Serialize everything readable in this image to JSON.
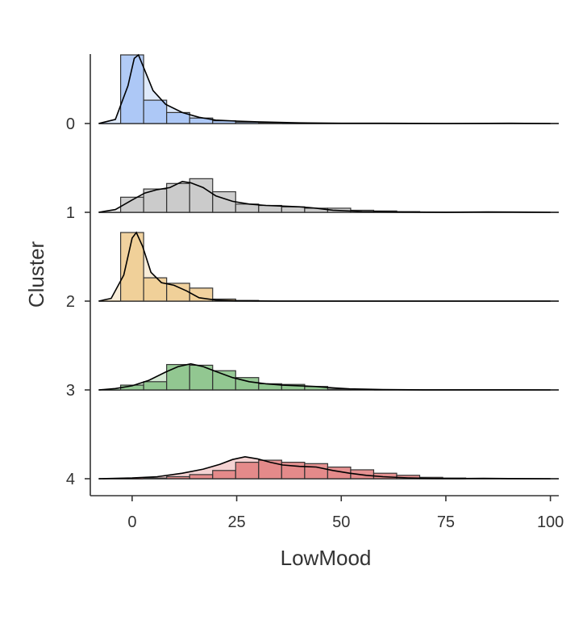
{
  "chart_data": {
    "type": "area",
    "subtype": "ridgeline-histogram-density",
    "title": "",
    "xlabel": "LowMood",
    "ylabel": "Cluster",
    "xlim": [
      -10,
      102
    ],
    "x_ticks": [
      0,
      25,
      50,
      75,
      100
    ],
    "x_tick_labels": [
      "0",
      "25",
      "50",
      "75",
      "100"
    ],
    "y_categories": [
      "0",
      "1",
      "2",
      "3",
      "4"
    ],
    "grid": false,
    "legend": "none",
    "bin_width": 5.5,
    "bin_start": -2.75,
    "series": [
      {
        "name": "0",
        "color": "#a4c2f4",
        "histogram": [
          1.0,
          0.34,
          0.16,
          0.08,
          0.04,
          0.02,
          0.01,
          0,
          0,
          0,
          0,
          0,
          0,
          0,
          0,
          0,
          0,
          0,
          0
        ],
        "density": [
          [
            -8,
            0
          ],
          [
            -4,
            0.06
          ],
          [
            -1,
            0.55
          ],
          [
            0.5,
            0.95
          ],
          [
            1.5,
            1.0
          ],
          [
            3,
            0.78
          ],
          [
            5,
            0.48
          ],
          [
            8,
            0.28
          ],
          [
            12,
            0.16
          ],
          [
            16,
            0.09
          ],
          [
            20,
            0.05
          ],
          [
            25,
            0.035
          ],
          [
            30,
            0.025
          ],
          [
            40,
            0.01
          ],
          [
            50,
            0.004
          ],
          [
            60,
            0.003
          ],
          [
            75,
            0.0
          ],
          [
            90,
            0.003
          ],
          [
            100,
            0.0
          ]
        ]
      },
      {
        "name": "1",
        "color": "#c6c6c6",
        "histogram": [
          0.22,
          0.34,
          0.42,
          0.49,
          0.3,
          0.12,
          0.1,
          0.08,
          0.06,
          0.06,
          0.03,
          0.02,
          0.01,
          0,
          0,
          0,
          0,
          0,
          0
        ],
        "density": [
          [
            -8,
            0
          ],
          [
            -4,
            0.04
          ],
          [
            0,
            0.18
          ],
          [
            3,
            0.28
          ],
          [
            6,
            0.33
          ],
          [
            9,
            0.36
          ],
          [
            12,
            0.45
          ],
          [
            14,
            0.43
          ],
          [
            17,
            0.36
          ],
          [
            20,
            0.24
          ],
          [
            24,
            0.16
          ],
          [
            28,
            0.12
          ],
          [
            32,
            0.1
          ],
          [
            36,
            0.09
          ],
          [
            40,
            0.08
          ],
          [
            44,
            0.06
          ],
          [
            48,
            0.03
          ],
          [
            55,
            0.012
          ],
          [
            65,
            0.004
          ],
          [
            75,
            0.001
          ],
          [
            85,
            0.005
          ],
          [
            95,
            0.002
          ],
          [
            100,
            0.0
          ]
        ]
      },
      {
        "name": "2",
        "color": "#efca8e",
        "histogram": [
          1.0,
          0.34,
          0.26,
          0.19,
          0.03,
          0.01,
          0,
          0,
          0,
          0,
          0,
          0,
          0,
          0,
          0,
          0,
          0,
          0,
          0
        ],
        "density": [
          [
            -8,
            0
          ],
          [
            -5,
            0.04
          ],
          [
            -2,
            0.38
          ],
          [
            0,
            0.92
          ],
          [
            1,
            1.0
          ],
          [
            2.5,
            0.8
          ],
          [
            4.5,
            0.42
          ],
          [
            7,
            0.27
          ],
          [
            10,
            0.23
          ],
          [
            13,
            0.15
          ],
          [
            16,
            0.05
          ],
          [
            20,
            0.015
          ],
          [
            25,
            0.005
          ],
          [
            35,
            0.0
          ],
          [
            100,
            0.0
          ]
        ]
      },
      {
        "name": "3",
        "color": "#86c185",
        "histogram": [
          0.07,
          0.12,
          0.37,
          0.36,
          0.28,
          0.18,
          0.09,
          0.08,
          0.05,
          0.01,
          0.005,
          0,
          0,
          0,
          0,
          0,
          0,
          0,
          0
        ],
        "density": [
          [
            -8,
            0
          ],
          [
            -4,
            0.02
          ],
          [
            0,
            0.06
          ],
          [
            4,
            0.14
          ],
          [
            8,
            0.26
          ],
          [
            11,
            0.34
          ],
          [
            14,
            0.38
          ],
          [
            17,
            0.34
          ],
          [
            20,
            0.27
          ],
          [
            24,
            0.18
          ],
          [
            28,
            0.12
          ],
          [
            32,
            0.09
          ],
          [
            36,
            0.07
          ],
          [
            40,
            0.06
          ],
          [
            44,
            0.05
          ],
          [
            48,
            0.03
          ],
          [
            52,
            0.015
          ],
          [
            60,
            0.005
          ],
          [
            70,
            0.001
          ],
          [
            100,
            0.0
          ]
        ]
      },
      {
        "name": "4",
        "color": "#e07e7e",
        "histogram": [
          0.0,
          0.01,
          0.03,
          0.06,
          0.12,
          0.24,
          0.27,
          0.24,
          0.22,
          0.17,
          0.13,
          0.08,
          0.05,
          0.02,
          0.01,
          0,
          0,
          0,
          0
        ],
        "density": [
          [
            -8,
            0
          ],
          [
            0,
            0.01
          ],
          [
            6,
            0.03
          ],
          [
            12,
            0.08
          ],
          [
            17,
            0.14
          ],
          [
            21,
            0.21
          ],
          [
            24,
            0.28
          ],
          [
            27,
            0.32
          ],
          [
            30,
            0.29
          ],
          [
            33,
            0.24
          ],
          [
            36,
            0.2
          ],
          [
            40,
            0.18
          ],
          [
            44,
            0.17
          ],
          [
            48,
            0.12
          ],
          [
            52,
            0.08
          ],
          [
            56,
            0.05
          ],
          [
            60,
            0.03
          ],
          [
            66,
            0.012
          ],
          [
            72,
            0.004
          ],
          [
            78,
            0.002
          ],
          [
            84,
            0.006
          ],
          [
            90,
            0.002
          ],
          [
            100,
            0.0
          ]
        ]
      }
    ]
  }
}
